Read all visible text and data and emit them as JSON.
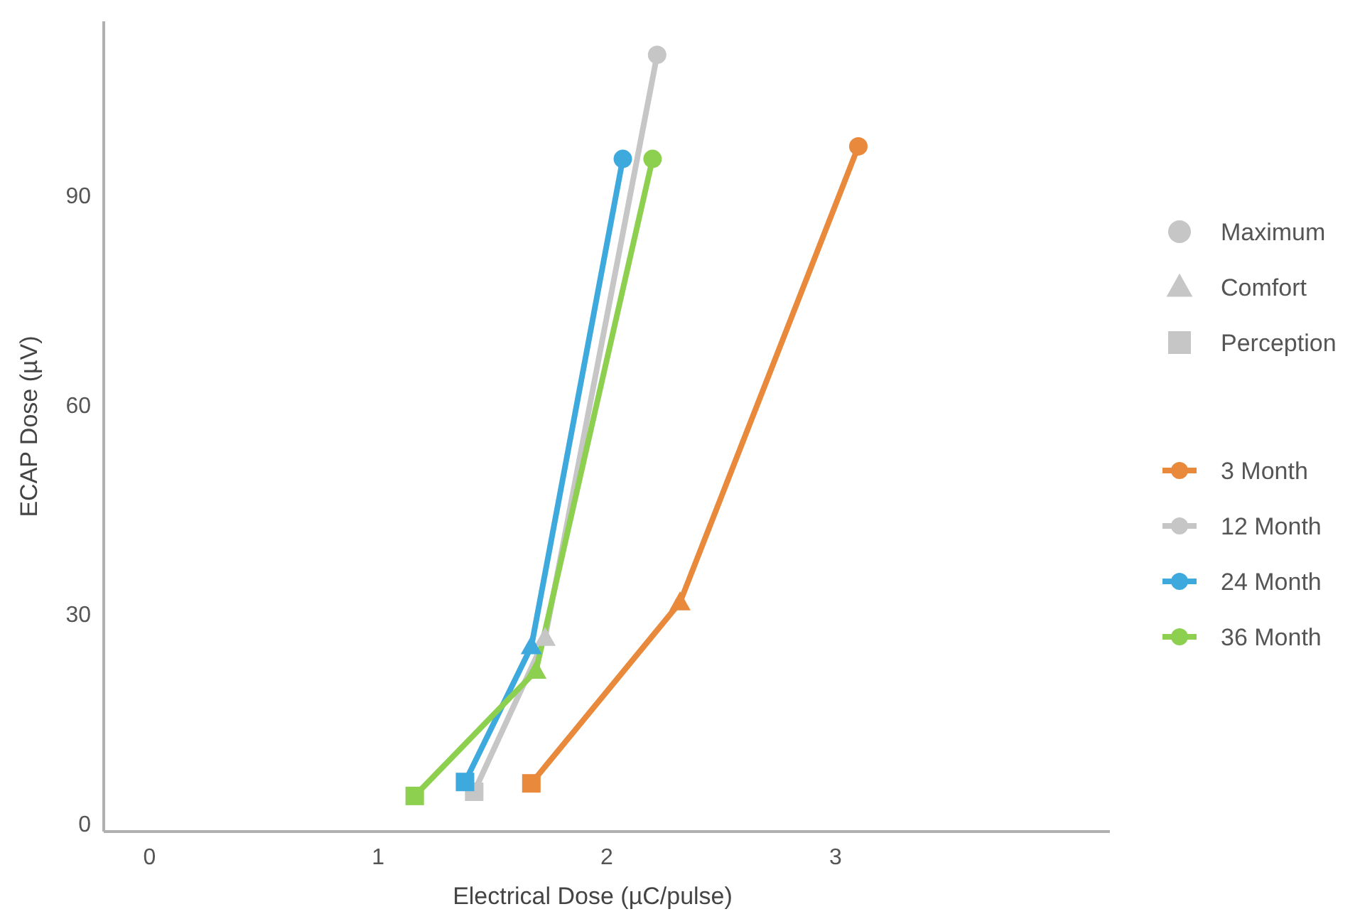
{
  "chart_data": {
    "type": "line",
    "xlabel": "Electrical Dose (µC/pulse)",
    "ylabel": "ECAP Dose (µV)",
    "xlim": [
      -0.2,
      4.2
    ],
    "ylim": [
      -1,
      115
    ],
    "xticks": [
      0,
      1,
      2,
      3
    ],
    "yticks": [
      0,
      30,
      60,
      90
    ],
    "grid": false,
    "legend": "right",
    "series": [
      {
        "name": "3 Month",
        "color": "#e8893b",
        "x": [
          1.67,
          2.32,
          3.1
        ],
        "values": [
          5.9,
          31.8,
          97.1
        ],
        "marker": "none"
      },
      {
        "name": "12 Month",
        "color": "#c6c6c6",
        "x": [
          1.42,
          1.73,
          2.22
        ],
        "values": [
          4.7,
          26.7,
          110.2
        ],
        "marker": "none"
      },
      {
        "name": "24 Month",
        "color": "#3ea9dd",
        "x": [
          1.38,
          1.67,
          2.07
        ],
        "values": [
          6.1,
          25.5,
          95.3
        ],
        "marker": "none"
      },
      {
        "name": "36 Month",
        "color": "#8dcf4e",
        "x": [
          1.16,
          1.69,
          2.2
        ],
        "values": [
          4.1,
          22,
          95.3
        ],
        "marker": "none"
      },
      {
        "name": "Maximum",
        "type": "scatter",
        "marker": "circle",
        "color": "#c6c6c6",
        "x": [
          3.1,
          2.22,
          2.07,
          2.2
        ],
        "values": [
          97.1,
          110.2,
          95.3,
          95.3
        ],
        "colors": [
          "#e8893b",
          "#c6c6c6",
          "#3ea9dd",
          "#8dcf4e"
        ]
      },
      {
        "name": "Comfort",
        "type": "scatter",
        "marker": "triangle",
        "color": "#c6c6c6",
        "x": [
          2.32,
          1.73,
          1.67,
          1.69
        ],
        "values": [
          31.8,
          26.7,
          25.5,
          22
        ],
        "colors": [
          "#e8893b",
          "#c6c6c6",
          "#3ea9dd",
          "#8dcf4e"
        ]
      },
      {
        "name": "Perception",
        "type": "scatter",
        "marker": "square",
        "color": "#c6c6c6",
        "x": [
          1.67,
          1.42,
          1.38,
          1.16
        ],
        "values": [
          5.9,
          4.7,
          6.1,
          4.1
        ],
        "colors": [
          "#e8893b",
          "#c6c6c6",
          "#3ea9dd",
          "#8dcf4e"
        ]
      }
    ]
  }
}
